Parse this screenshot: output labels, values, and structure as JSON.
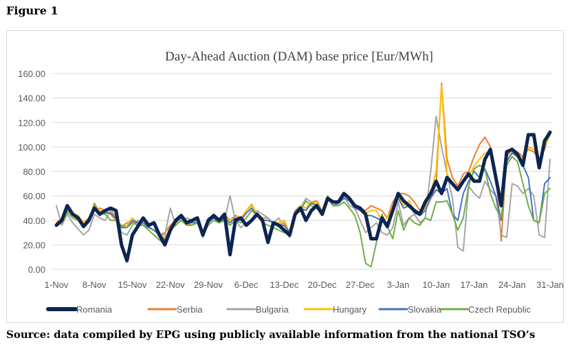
{
  "figure_label": "Figure 1",
  "source_note": "Source: data compiled by EPG using publicly available information from the national TSO’s",
  "chart_data": {
    "type": "line",
    "title": "Day-Ahead Auction (DAM) base price [Eur/MWh]",
    "xlabel": "",
    "ylabel": "",
    "ylim": [
      0,
      160
    ],
    "y_ticks": [
      "0.00",
      "20.00",
      "40.00",
      "60.00",
      "80.00",
      "100.00",
      "120.00",
      "140.00",
      "160.00"
    ],
    "x_tick_labels": [
      "1-Nov",
      "8-Nov",
      "15-Nov",
      "22-Nov",
      "29-Nov",
      "6-Dec",
      "13-Dec",
      "20-Dec",
      "27-Dec",
      "3-Jan",
      "10-Jan",
      "17-Jan",
      "24-Jan",
      "31-Jan"
    ],
    "x_tick_indices": [
      0,
      7,
      14,
      21,
      28,
      35,
      42,
      49,
      56,
      63,
      70,
      77,
      84,
      91
    ],
    "grid": true,
    "legend_position": "bottom",
    "x_start": "1-Nov",
    "x_end": "31-Jan",
    "series": [
      {
        "name": "Romania",
        "color": "#0d2552",
        "width": 5,
        "values": [
          36,
          40,
          52,
          45,
          42,
          35,
          40,
          50,
          45,
          48,
          50,
          48,
          20,
          7,
          28,
          35,
          42,
          36,
          38,
          28,
          20,
          32,
          40,
          44,
          38,
          40,
          42,
          28,
          40,
          44,
          40,
          45,
          12,
          40,
          42,
          36,
          40,
          45,
          40,
          22,
          38,
          36,
          32,
          28,
          45,
          50,
          40,
          48,
          52,
          45,
          58,
          55,
          55,
          62,
          58,
          52,
          50,
          45,
          25,
          25,
          42,
          35,
          48,
          62,
          56,
          52,
          48,
          45,
          55,
          62,
          72,
          62,
          75,
          70,
          65,
          72,
          78,
          72,
          72,
          90,
          98,
          75,
          52,
          96,
          98,
          94,
          85,
          110,
          110,
          83,
          105,
          112
        ]
      },
      {
        "name": "Serbia",
        "color": "#ed7d31",
        "width": 2,
        "values": [
          38,
          42,
          48,
          45,
          44,
          38,
          42,
          48,
          50,
          48,
          45,
          40,
          35,
          38,
          40,
          36,
          40,
          35,
          32,
          28,
          30,
          36,
          40,
          42,
          38,
          36,
          38,
          30,
          38,
          44,
          38,
          45,
          40,
          44,
          42,
          48,
          53,
          45,
          42,
          42,
          38,
          36,
          38,
          30,
          48,
          52,
          50,
          55,
          56,
          48,
          60,
          54,
          56,
          60,
          58,
          52,
          50,
          48,
          52,
          50,
          48,
          42,
          55,
          62,
          62,
          60,
          55,
          48,
          55,
          58,
          70,
          152,
          90,
          75,
          68,
          78,
          80,
          92,
          102,
          108,
          100,
          80,
          23,
          92,
          98,
          96,
          92,
          98,
          96,
          90,
          98,
          112
        ]
      },
      {
        "name": "Bulgaria",
        "color": "#a5a5a5",
        "width": 2,
        "values": [
          52,
          36,
          45,
          38,
          33,
          28,
          32,
          45,
          42,
          40,
          48,
          44,
          30,
          28,
          36,
          40,
          36,
          34,
          32,
          28,
          28,
          50,
          36,
          40,
          42,
          40,
          38,
          26,
          42,
          42,
          40,
          40,
          60,
          40,
          34,
          38,
          40,
          48,
          45,
          42,
          38,
          42,
          32,
          26,
          48,
          50,
          58,
          55,
          52,
          46,
          60,
          52,
          54,
          60,
          52,
          50,
          40,
          30,
          34,
          38,
          30,
          28,
          34,
          55,
          36,
          42,
          45,
          38,
          42,
          80,
          125,
          100,
          78,
          58,
          18,
          15,
          68,
          62,
          58,
          72,
          65,
          60,
          28,
          26,
          70,
          68,
          62,
          66,
          60,
          28,
          26,
          90
        ]
      },
      {
        "name": "Hungary",
        "color": "#ffc000",
        "width": 2,
        "values": [
          36,
          38,
          50,
          46,
          44,
          38,
          40,
          52,
          48,
          48,
          46,
          44,
          34,
          36,
          42,
          38,
          40,
          34,
          32,
          28,
          26,
          34,
          40,
          44,
          40,
          38,
          40,
          28,
          40,
          44,
          40,
          42,
          40,
          42,
          42,
          48,
          52,
          46,
          40,
          40,
          38,
          38,
          40,
          30,
          46,
          52,
          50,
          55,
          54,
          48,
          60,
          52,
          54,
          58,
          56,
          50,
          48,
          46,
          48,
          48,
          40,
          42,
          50,
          60,
          52,
          56,
          48,
          46,
          50,
          62,
          80,
          150,
          78,
          70,
          65,
          72,
          76,
          84,
          90,
          95,
          96,
          78,
          55,
          88,
          96,
          94,
          90,
          100,
          98,
          90,
          100,
          110
        ]
      },
      {
        "name": "Slovakia",
        "color": "#4472c4",
        "width": 2,
        "values": [
          37,
          40,
          50,
          44,
          42,
          36,
          40,
          50,
          46,
          46,
          46,
          42,
          34,
          34,
          40,
          38,
          38,
          34,
          32,
          28,
          24,
          34,
          38,
          42,
          38,
          38,
          38,
          28,
          38,
          42,
          38,
          42,
          38,
          42,
          40,
          46,
          50,
          44,
          40,
          40,
          38,
          36,
          36,
          30,
          44,
          50,
          48,
          54,
          52,
          46,
          58,
          52,
          54,
          58,
          56,
          50,
          48,
          44,
          44,
          42,
          40,
          38,
          46,
          58,
          50,
          52,
          46,
          44,
          48,
          58,
          65,
          62,
          66,
          45,
          40,
          62,
          72,
          80,
          75,
          82,
          72,
          60,
          40,
          88,
          95,
          92,
          85,
          75,
          40,
          38,
          70,
          75
        ]
      },
      {
        "name": "Czech Republic",
        "color": "#70ad47",
        "width": 2,
        "values": [
          36,
          38,
          47,
          42,
          40,
          34,
          40,
          54,
          46,
          45,
          40,
          40,
          36,
          34,
          38,
          36,
          36,
          32,
          28,
          24,
          20,
          32,
          36,
          40,
          36,
          36,
          38,
          28,
          36,
          40,
          38,
          40,
          36,
          40,
          38,
          42,
          48,
          44,
          38,
          36,
          34,
          32,
          30,
          28,
          44,
          48,
          56,
          52,
          50,
          44,
          60,
          52,
          52,
          55,
          50,
          44,
          30,
          5,
          2,
          22,
          45,
          35,
          25,
          48,
          32,
          42,
          38,
          36,
          42,
          40,
          55,
          55,
          56,
          45,
          32,
          42,
          68,
          82,
          85,
          82,
          62,
          50,
          42,
          85,
          92,
          88,
          70,
          52,
          40,
          38,
          62,
          66
        ]
      }
    ]
  }
}
